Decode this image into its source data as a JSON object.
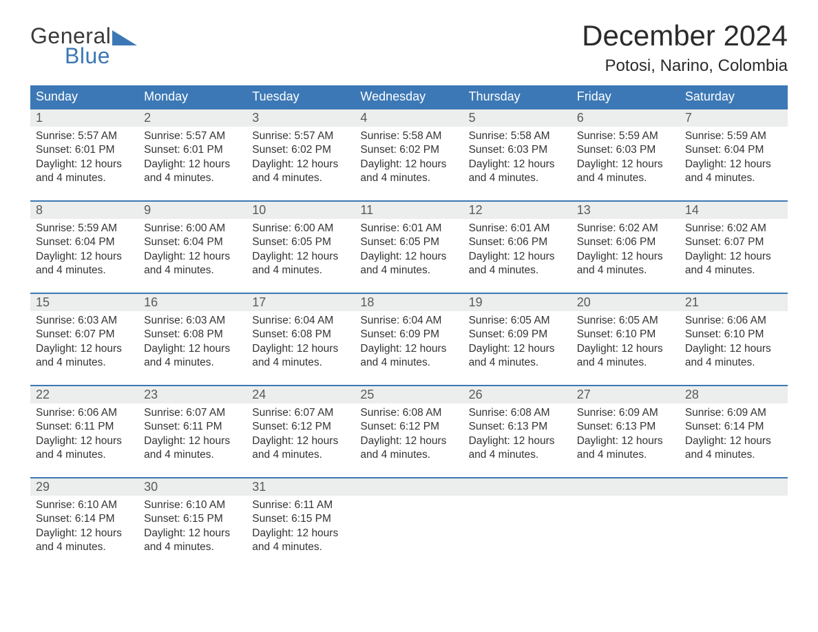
{
  "brand": {
    "word1": "General",
    "word2": "Blue",
    "accent_color": "#3c78b5"
  },
  "title": "December 2024",
  "location": "Potosi, Narino, Colombia",
  "colors": {
    "header_bg": "#3c78b5",
    "header_text": "#ffffff",
    "daynum_bg": "#eceded",
    "cell_border": "#3c78b5",
    "body_text": "#333333",
    "page_bg": "#ffffff"
  },
  "typography": {
    "title_fontsize": 42,
    "location_fontsize": 24,
    "dow_fontsize": 18,
    "daynum_fontsize": 18,
    "body_fontsize": 15.5
  },
  "days_of_week": [
    "Sunday",
    "Monday",
    "Tuesday",
    "Wednesday",
    "Thursday",
    "Friday",
    "Saturday"
  ],
  "labels": {
    "sunrise_prefix": "Sunrise: ",
    "sunset_prefix": "Sunset: ",
    "daylight_prefix": "Daylight: ",
    "daylight_suffix_line1": "12 hours",
    "daylight_suffix_line2": "and 4 minutes."
  },
  "weeks": [
    [
      {
        "n": "1",
        "sunrise": "5:57 AM",
        "sunset": "6:01 PM"
      },
      {
        "n": "2",
        "sunrise": "5:57 AM",
        "sunset": "6:01 PM"
      },
      {
        "n": "3",
        "sunrise": "5:57 AM",
        "sunset": "6:02 PM"
      },
      {
        "n": "4",
        "sunrise": "5:58 AM",
        "sunset": "6:02 PM"
      },
      {
        "n": "5",
        "sunrise": "5:58 AM",
        "sunset": "6:03 PM"
      },
      {
        "n": "6",
        "sunrise": "5:59 AM",
        "sunset": "6:03 PM"
      },
      {
        "n": "7",
        "sunrise": "5:59 AM",
        "sunset": "6:04 PM"
      }
    ],
    [
      {
        "n": "8",
        "sunrise": "5:59 AM",
        "sunset": "6:04 PM"
      },
      {
        "n": "9",
        "sunrise": "6:00 AM",
        "sunset": "6:04 PM"
      },
      {
        "n": "10",
        "sunrise": "6:00 AM",
        "sunset": "6:05 PM"
      },
      {
        "n": "11",
        "sunrise": "6:01 AM",
        "sunset": "6:05 PM"
      },
      {
        "n": "12",
        "sunrise": "6:01 AM",
        "sunset": "6:06 PM"
      },
      {
        "n": "13",
        "sunrise": "6:02 AM",
        "sunset": "6:06 PM"
      },
      {
        "n": "14",
        "sunrise": "6:02 AM",
        "sunset": "6:07 PM"
      }
    ],
    [
      {
        "n": "15",
        "sunrise": "6:03 AM",
        "sunset": "6:07 PM"
      },
      {
        "n": "16",
        "sunrise": "6:03 AM",
        "sunset": "6:08 PM"
      },
      {
        "n": "17",
        "sunrise": "6:04 AM",
        "sunset": "6:08 PM"
      },
      {
        "n": "18",
        "sunrise": "6:04 AM",
        "sunset": "6:09 PM"
      },
      {
        "n": "19",
        "sunrise": "6:05 AM",
        "sunset": "6:09 PM"
      },
      {
        "n": "20",
        "sunrise": "6:05 AM",
        "sunset": "6:10 PM"
      },
      {
        "n": "21",
        "sunrise": "6:06 AM",
        "sunset": "6:10 PM"
      }
    ],
    [
      {
        "n": "22",
        "sunrise": "6:06 AM",
        "sunset": "6:11 PM"
      },
      {
        "n": "23",
        "sunrise": "6:07 AM",
        "sunset": "6:11 PM"
      },
      {
        "n": "24",
        "sunrise": "6:07 AM",
        "sunset": "6:12 PM"
      },
      {
        "n": "25",
        "sunrise": "6:08 AM",
        "sunset": "6:12 PM"
      },
      {
        "n": "26",
        "sunrise": "6:08 AM",
        "sunset": "6:13 PM"
      },
      {
        "n": "27",
        "sunrise": "6:09 AM",
        "sunset": "6:13 PM"
      },
      {
        "n": "28",
        "sunrise": "6:09 AM",
        "sunset": "6:14 PM"
      }
    ],
    [
      {
        "n": "29",
        "sunrise": "6:10 AM",
        "sunset": "6:14 PM"
      },
      {
        "n": "30",
        "sunrise": "6:10 AM",
        "sunset": "6:15 PM"
      },
      {
        "n": "31",
        "sunrise": "6:11 AM",
        "sunset": "6:15 PM"
      },
      null,
      null,
      null,
      null
    ]
  ]
}
